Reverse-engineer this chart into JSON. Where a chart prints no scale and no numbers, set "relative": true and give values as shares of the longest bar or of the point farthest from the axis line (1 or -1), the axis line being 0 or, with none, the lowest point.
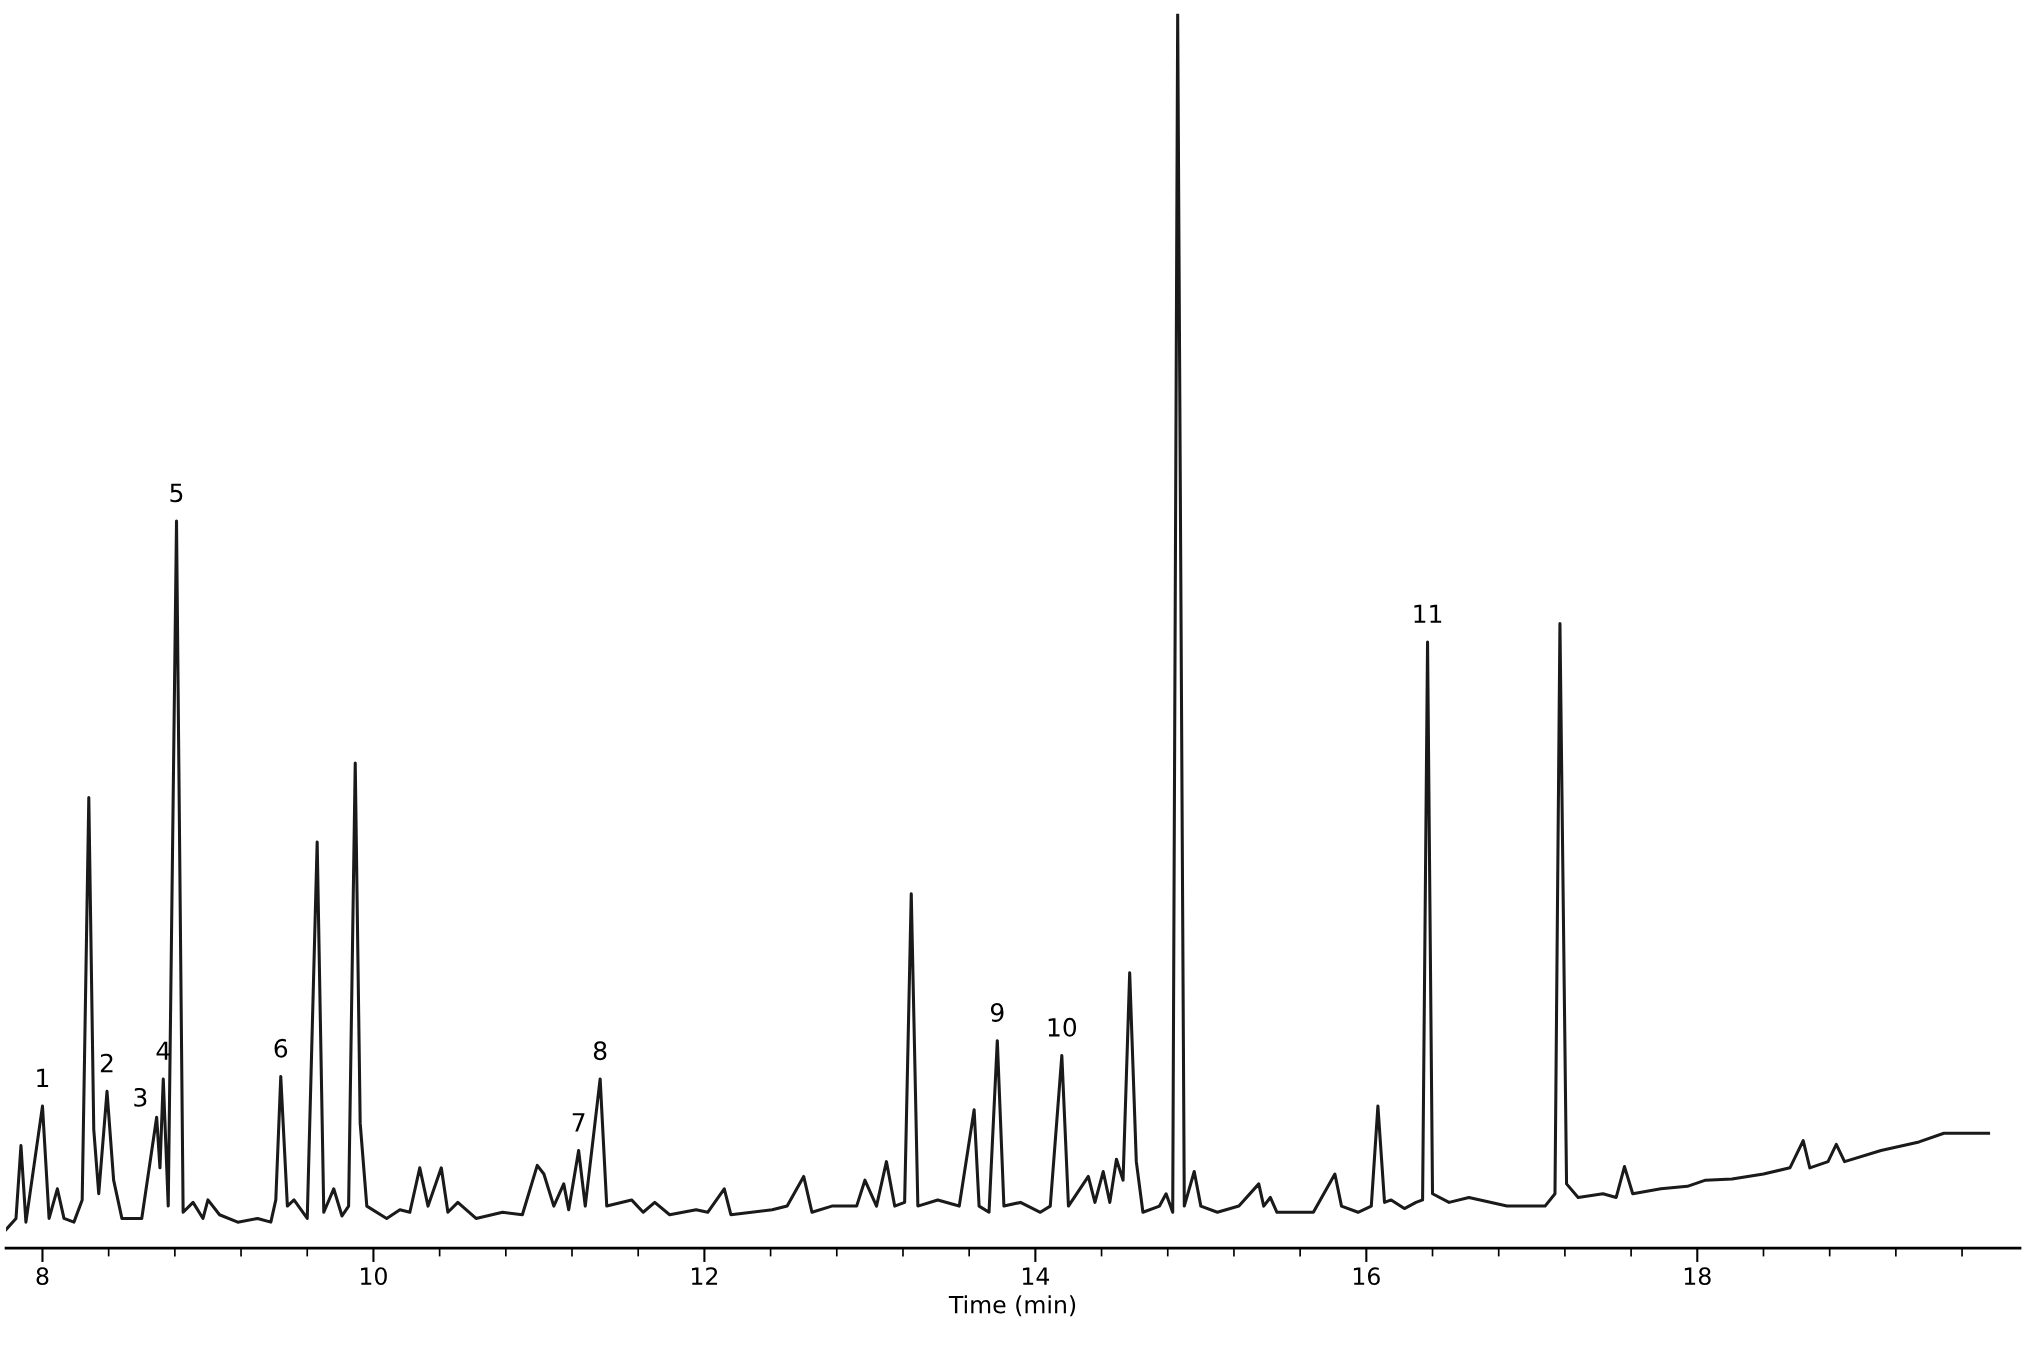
{
  "chart_data": {
    "type": "line",
    "relative": true,
    "xlabel": "Time (min)",
    "xlim": [
      7.78,
      19.95
    ],
    "xticks": [
      8,
      {
        "value": 8.4,
        "label": null
      },
      {
        "value": 8.8,
        "label": null
      },
      {
        "value": 9.2,
        "label": null
      },
      {
        "value": 9.6,
        "label": null
      },
      10,
      {
        "value": 10.4,
        "label": null
      },
      {
        "value": 10.8,
        "label": null
      },
      {
        "value": 11.2,
        "label": null
      },
      {
        "value": 11.6,
        "label": null
      },
      12,
      {
        "value": 12.4,
        "label": null
      },
      {
        "value": 12.8,
        "label": null
      },
      {
        "value": 13.2,
        "label": null
      },
      {
        "value": 13.6,
        "label": null
      },
      14,
      {
        "value": 14.4,
        "label": null
      },
      {
        "value": 14.8,
        "label": null
      },
      {
        "value": 15.2,
        "label": null
      },
      {
        "value": 15.6,
        "label": null
      },
      16,
      {
        "value": 16.4,
        "label": null
      },
      {
        "value": 16.8,
        "label": null
      },
      {
        "value": 17.2,
        "label": null
      },
      {
        "value": 17.6,
        "label": null
      },
      18,
      {
        "value": 18.4,
        "label": null
      },
      {
        "value": 18.8,
        "label": null
      },
      {
        "value": 19.2,
        "label": null
      },
      {
        "value": 19.6,
        "label": null
      }
    ],
    "grid": false,
    "legend": false,
    "marker": "none",
    "line_style": "solid",
    "series": [
      {
        "color": "#1a1a1a",
        "x": [
          7.78,
          7.84,
          7.87,
          7.9,
          8.0,
          8.04,
          8.09,
          8.13,
          8.19,
          8.24,
          8.28,
          8.31,
          8.34,
          8.39,
          8.43,
          8.48,
          8.6,
          8.69,
          8.71,
          8.73,
          8.76,
          8.81,
          8.85,
          8.91,
          8.97,
          9.0,
          9.07,
          9.18,
          9.3,
          9.38,
          9.41,
          9.44,
          9.48,
          9.52,
          9.6,
          9.66,
          9.7,
          9.76,
          9.81,
          9.85,
          9.89,
          9.92,
          9.96,
          10.08,
          10.16,
          10.22,
          10.28,
          10.33,
          10.41,
          10.45,
          10.51,
          10.62,
          10.78,
          10.9,
          10.99,
          11.03,
          11.09,
          11.15,
          11.18,
          11.24,
          11.28,
          11.37,
          11.41,
          11.56,
          11.63,
          11.7,
          11.79,
          11.95,
          12.02,
          12.12,
          12.16,
          12.41,
          12.5,
          12.6,
          12.65,
          12.77,
          12.92,
          12.97,
          13.04,
          13.1,
          13.15,
          13.21,
          13.25,
          13.29,
          13.41,
          13.54,
          13.63,
          13.66,
          13.72,
          13.77,
          13.81,
          13.91,
          14.03,
          14.09,
          14.16,
          14.2,
          14.32,
          14.36,
          14.41,
          14.45,
          14.49,
          14.53,
          14.57,
          14.61,
          14.65,
          14.75,
          14.79,
          14.83,
          14.86,
          14.9,
          14.96,
          15.0,
          15.1,
          15.23,
          15.35,
          15.38,
          15.42,
          15.46,
          15.68,
          15.81,
          15.85,
          15.95,
          16.03,
          16.07,
          16.11,
          16.15,
          16.23,
          16.3,
          16.34,
          16.37,
          16.4,
          16.5,
          16.62,
          16.85,
          17.08,
          17.14,
          17.17,
          17.21,
          17.28,
          17.43,
          17.51,
          17.56,
          17.61,
          17.78,
          17.94,
          18.05,
          18.21,
          18.4,
          18.56,
          18.64,
          18.68,
          18.79,
          18.84,
          18.89,
          19.11,
          19.34,
          19.49,
          19.76
        ],
        "values": [
          0.015,
          0.024,
          0.083,
          0.021,
          0.115,
          0.024,
          0.048,
          0.024,
          0.021,
          0.039,
          0.365,
          0.096,
          0.044,
          0.127,
          0.055,
          0.024,
          0.024,
          0.106,
          0.065,
          0.137,
          0.034,
          0.589,
          0.029,
          0.037,
          0.024,
          0.039,
          0.027,
          0.021,
          0.024,
          0.021,
          0.039,
          0.139,
          0.034,
          0.039,
          0.024,
          0.329,
          0.029,
          0.048,
          0.026,
          0.034,
          0.393,
          0.101,
          0.034,
          0.024,
          0.031,
          0.029,
          0.065,
          0.034,
          0.065,
          0.029,
          0.037,
          0.024,
          0.029,
          0.027,
          0.067,
          0.06,
          0.034,
          0.052,
          0.031,
          0.079,
          0.034,
          0.137,
          0.034,
          0.039,
          0.029,
          0.037,
          0.027,
          0.031,
          0.029,
          0.048,
          0.027,
          0.031,
          0.034,
          0.058,
          0.029,
          0.034,
          0.034,
          0.055,
          0.034,
          0.07,
          0.034,
          0.037,
          0.287,
          0.034,
          0.039,
          0.034,
          0.112,
          0.034,
          0.029,
          0.168,
          0.034,
          0.037,
          0.029,
          0.034,
          0.156,
          0.034,
          0.058,
          0.037,
          0.062,
          0.037,
          0.072,
          0.055,
          0.223,
          0.07,
          0.029,
          0.034,
          0.044,
          0.029,
          1.0,
          0.034,
          0.062,
          0.034,
          0.029,
          0.034,
          0.052,
          0.034,
          0.041,
          0.029,
          0.029,
          0.06,
          0.034,
          0.029,
          0.034,
          0.115,
          0.037,
          0.039,
          0.032,
          0.037,
          0.039,
          0.491,
          0.044,
          0.037,
          0.041,
          0.034,
          0.034,
          0.044,
          0.506,
          0.052,
          0.041,
          0.044,
          0.041,
          0.066,
          0.044,
          0.048,
          0.05,
          0.055,
          0.056,
          0.06,
          0.065,
          0.087,
          0.065,
          0.07,
          0.084,
          0.07,
          0.079,
          0.086,
          0.093,
          0.093
        ]
      }
    ],
    "annotations": [
      {
        "text": "1",
        "x": 8.0,
        "y": 0.115
      },
      {
        "text": "2",
        "x": 8.39,
        "y": 0.127
      },
      {
        "text": "3",
        "x": 8.69,
        "y": 0.106
      },
      {
        "text": "4",
        "x": 8.73,
        "y": 0.137
      },
      {
        "text": "5",
        "x": 8.81,
        "y": 0.589
      },
      {
        "text": "6",
        "x": 9.44,
        "y": 0.139
      },
      {
        "text": "7",
        "x": 11.24,
        "y": 0.079
      },
      {
        "text": "8",
        "x": 11.37,
        "y": 0.137
      },
      {
        "text": "9",
        "x": 13.77,
        "y": 0.168
      },
      {
        "text": "10",
        "x": 14.16,
        "y": 0.156
      },
      {
        "text": "11",
        "x": 16.37,
        "y": 0.491
      }
    ]
  }
}
